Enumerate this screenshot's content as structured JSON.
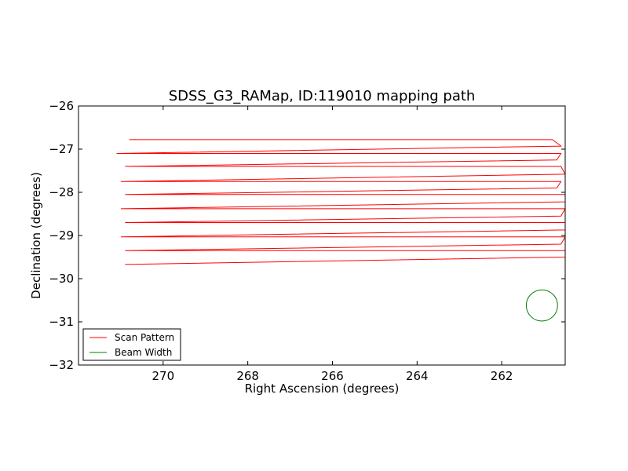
{
  "chart_data": {
    "type": "line",
    "title": "SDSS_G3_RAMap, ID:119010 mapping path",
    "xlabel": "Right Ascension (degrees)",
    "ylabel": "Declination (degrees)",
    "xlim": [
      272.0,
      260.5
    ],
    "ylim": [
      -32,
      -26
    ],
    "x_inverted": true,
    "xticks": [
      270,
      268,
      266,
      264,
      262
    ],
    "xtick_labels": [
      "270",
      "268",
      "266",
      "264",
      "262"
    ],
    "yticks": [
      -26,
      -27,
      -28,
      -29,
      -30,
      -31,
      -32
    ],
    "ytick_labels": [
      "−26",
      "−27",
      "−28",
      "−29",
      "−30",
      "−31",
      "−32"
    ],
    "grid": false,
    "legend": {
      "placement": "lower-left",
      "entries": [
        {
          "label": "Scan Pattern",
          "color": "#ff0000"
        },
        {
          "label": "Beam Width",
          "color": "#008000"
        }
      ]
    },
    "series": [
      {
        "name": "Scan Pattern",
        "color": "#ff0000",
        "x": [
          270.8,
          260.8,
          260.6,
          271.1,
          260.6,
          260.7,
          270.9,
          260.6,
          260.5,
          271.0,
          260.6,
          260.7,
          270.9,
          260.5,
          260.5,
          271.0,
          260.5,
          260.6,
          270.9,
          260.5,
          260.5,
          271.0,
          260.5,
          260.6,
          270.9,
          260.5,
          260.5,
          270.9
        ],
        "y": [
          -26.78,
          -26.78,
          -26.93,
          -27.1,
          -27.1,
          -27.25,
          -27.4,
          -27.4,
          -27.58,
          -27.75,
          -27.75,
          -27.9,
          -28.05,
          -28.05,
          -28.22,
          -28.38,
          -28.38,
          -28.55,
          -28.7,
          -28.7,
          -28.87,
          -29.03,
          -29.03,
          -29.2,
          -29.35,
          -29.35,
          -29.5,
          -29.67
        ]
      },
      {
        "name": "Beam Width",
        "color": "#008000",
        "center": [
          261.05,
          -30.62
        ],
        "radius_deg": 0.37
      }
    ]
  }
}
